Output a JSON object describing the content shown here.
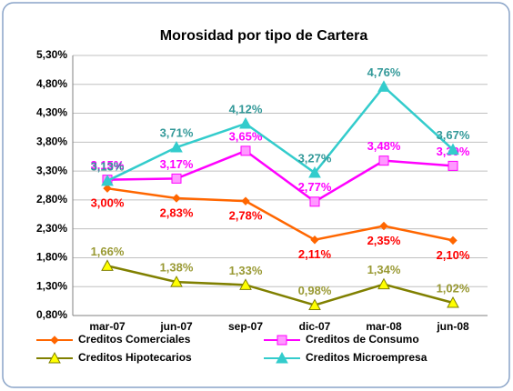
{
  "chart_data": {
    "type": "line",
    "title": "Morosidad por tipo de Cartera",
    "categories": [
      "mar-07",
      "jun-07",
      "sep-07",
      "dic-07",
      "mar-08",
      "jun-08"
    ],
    "ylim": [
      0.8,
      5.3
    ],
    "yticks": [
      {
        "value": 0.8,
        "label": "0,80%"
      },
      {
        "value": 1.3,
        "label": "1,30%"
      },
      {
        "value": 1.8,
        "label": "1,80%"
      },
      {
        "value": 2.3,
        "label": "2,30%"
      },
      {
        "value": 2.8,
        "label": "2,80%"
      },
      {
        "value": 3.3,
        "label": "3,30%"
      },
      {
        "value": 3.8,
        "label": "3,80%"
      },
      {
        "value": 4.3,
        "label": "4,30%"
      },
      {
        "value": 4.8,
        "label": "4,80%"
      },
      {
        "value": 5.3,
        "label": "5,30%"
      }
    ],
    "grid": true,
    "series": [
      {
        "name": "Creditos Comerciales",
        "color": "#ff6600",
        "marker": "diamond",
        "marker_fill": "#ff6600",
        "label_color": "#ff0000",
        "label_position": "below",
        "values": [
          3.0,
          2.83,
          2.78,
          2.11,
          2.35,
          2.1
        ],
        "value_labels": [
          "3,00%",
          "2,83%",
          "2,78%",
          "2,11%",
          "2,35%",
          "2,10%"
        ]
      },
      {
        "name": "Creditos de Consumo",
        "color": "#ff00ff",
        "marker": "square",
        "marker_fill": "#ff99ff",
        "label_color": "#ff00ff",
        "label_position": "above",
        "values": [
          3.15,
          3.17,
          3.65,
          2.77,
          3.48,
          3.39
        ],
        "value_labels": [
          "3,15%",
          "3,17%",
          "3,65%",
          "2,77%",
          "3,48%",
          "3,39%"
        ]
      },
      {
        "name": "Creditos Hipotecarios",
        "color": "#808000",
        "marker": "triangle",
        "marker_fill": "#ffff00",
        "label_color": "#999933",
        "label_position": "above",
        "values": [
          1.66,
          1.38,
          1.33,
          0.98,
          1.34,
          1.02
        ],
        "value_labels": [
          "1,66%",
          "1,38%",
          "1,33%",
          "0,98%",
          "1,34%",
          "1,02%"
        ]
      },
      {
        "name": "Creditos Microempresa",
        "color": "#33cccc",
        "marker": "triangle",
        "marker_fill": "#33cccc",
        "label_color": "#339999",
        "label_position": "above",
        "values": [
          3.13,
          3.71,
          4.12,
          3.27,
          4.76,
          3.67
        ],
        "value_labels": [
          "3,13%",
          "3,71%",
          "4,12%",
          "3,27%",
          "4,76%",
          "3,67%"
        ]
      }
    ]
  }
}
